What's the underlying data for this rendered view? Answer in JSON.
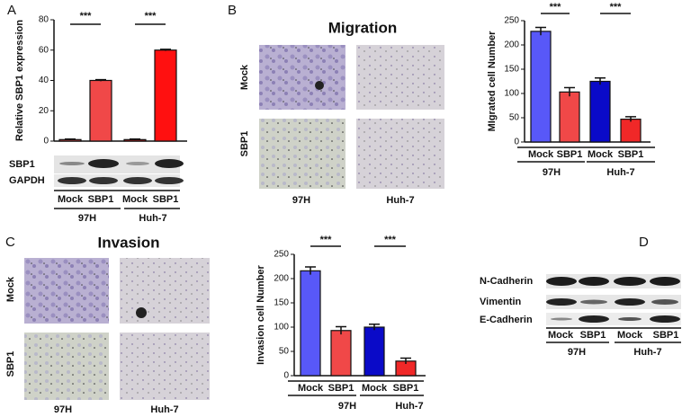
{
  "figure": {
    "panel_labels": [
      "A",
      "B",
      "C",
      "D"
    ],
    "migration_title": "Migration",
    "invasion_title": "Invasion",
    "image_row_labels": [
      "Mock",
      "SBP1"
    ],
    "image_col_labels": [
      "97H",
      "Huh-7"
    ],
    "blot_A": [
      "SBP1",
      "GAPDH"
    ],
    "blot_D": [
      "N-Cadherin",
      "Vimentin",
      "E-Cadherin"
    ],
    "lane_labels": [
      "Mock",
      "SBP1",
      "Mock",
      "SBP1"
    ],
    "lane_groups": [
      "97H",
      "Huh-7"
    ]
  },
  "chart_data": [
    {
      "type": "bar",
      "y_label": "Relative SBP1 expression",
      "categories": [
        "Mock",
        "SBP1",
        "Mock",
        "SBP1"
      ],
      "groups": [
        "97H",
        "Huh-7"
      ],
      "values": [
        1,
        40,
        1,
        60
      ],
      "errors": [
        0.3,
        0.5,
        0.3,
        0.5
      ],
      "colors": [
        "#e84a4a",
        "#f04848",
        "#cc2020",
        "#ff1010"
      ],
      "ylim": [
        0,
        80
      ],
      "yticks": [
        0,
        20,
        40,
        60,
        80
      ],
      "significance": [
        "***",
        "***"
      ]
    },
    {
      "type": "bar",
      "y_label": "MIgrated cell Number",
      "categories": [
        "Mock",
        "SBP1",
        "Mock",
        "SBP1"
      ],
      "groups": [
        "97H",
        "Huh-7"
      ],
      "values": [
        228,
        103,
        125,
        47
      ],
      "errors": [
        8,
        9,
        7,
        5
      ],
      "colors": [
        "#5858f8",
        "#f04848",
        "#0a0ac8",
        "#f02828"
      ],
      "ylim": [
        0,
        250
      ],
      "yticks": [
        0,
        50,
        100,
        150,
        200,
        250
      ],
      "significance": [
        "***",
        "***"
      ]
    },
    {
      "type": "bar",
      "y_label": "Invasion cell Number",
      "categories": [
        "Mock",
        "SBP1",
        "Mock",
        "SBP1"
      ],
      "groups": [
        "97H",
        "Huh-7"
      ],
      "values": [
        216,
        93,
        100,
        30
      ],
      "errors": [
        8,
        8,
        6,
        6
      ],
      "colors": [
        "#5858f8",
        "#f04848",
        "#0a0ac8",
        "#f02828"
      ],
      "ylim": [
        0,
        250
      ],
      "yticks": [
        0,
        50,
        100,
        150,
        200,
        250
      ],
      "significance": [
        "***",
        "***"
      ]
    }
  ]
}
